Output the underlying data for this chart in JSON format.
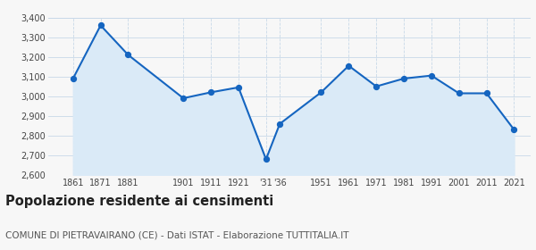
{
  "years": [
    1861,
    1871,
    1881,
    1901,
    1911,
    1921,
    1931,
    1936,
    1951,
    1961,
    1971,
    1981,
    1991,
    2001,
    2011,
    2021
  ],
  "population": [
    3090,
    3360,
    3210,
    2990,
    3020,
    3045,
    2680,
    2860,
    3020,
    3155,
    3050,
    3090,
    3105,
    3015,
    3015,
    2830
  ],
  "ylim": [
    2600,
    3400
  ],
  "yticks": [
    2600,
    2700,
    2800,
    2900,
    3000,
    3100,
    3200,
    3300,
    3400
  ],
  "xlim_left": 1852,
  "xlim_right": 2027,
  "line_color": "#1565c0",
  "fill_color": "#daeaf7",
  "marker_color": "#1565c0",
  "grid_color": "#c8d8e8",
  "bg_color": "#f7f7f7",
  "title": "Popolazione residente ai censimenti",
  "subtitle": "COMUNE DI PIETRAVAIRANO (CE) - Dati ISTAT - Elaborazione TUTTITALIA.IT",
  "title_fontsize": 10.5,
  "subtitle_fontsize": 7.5
}
